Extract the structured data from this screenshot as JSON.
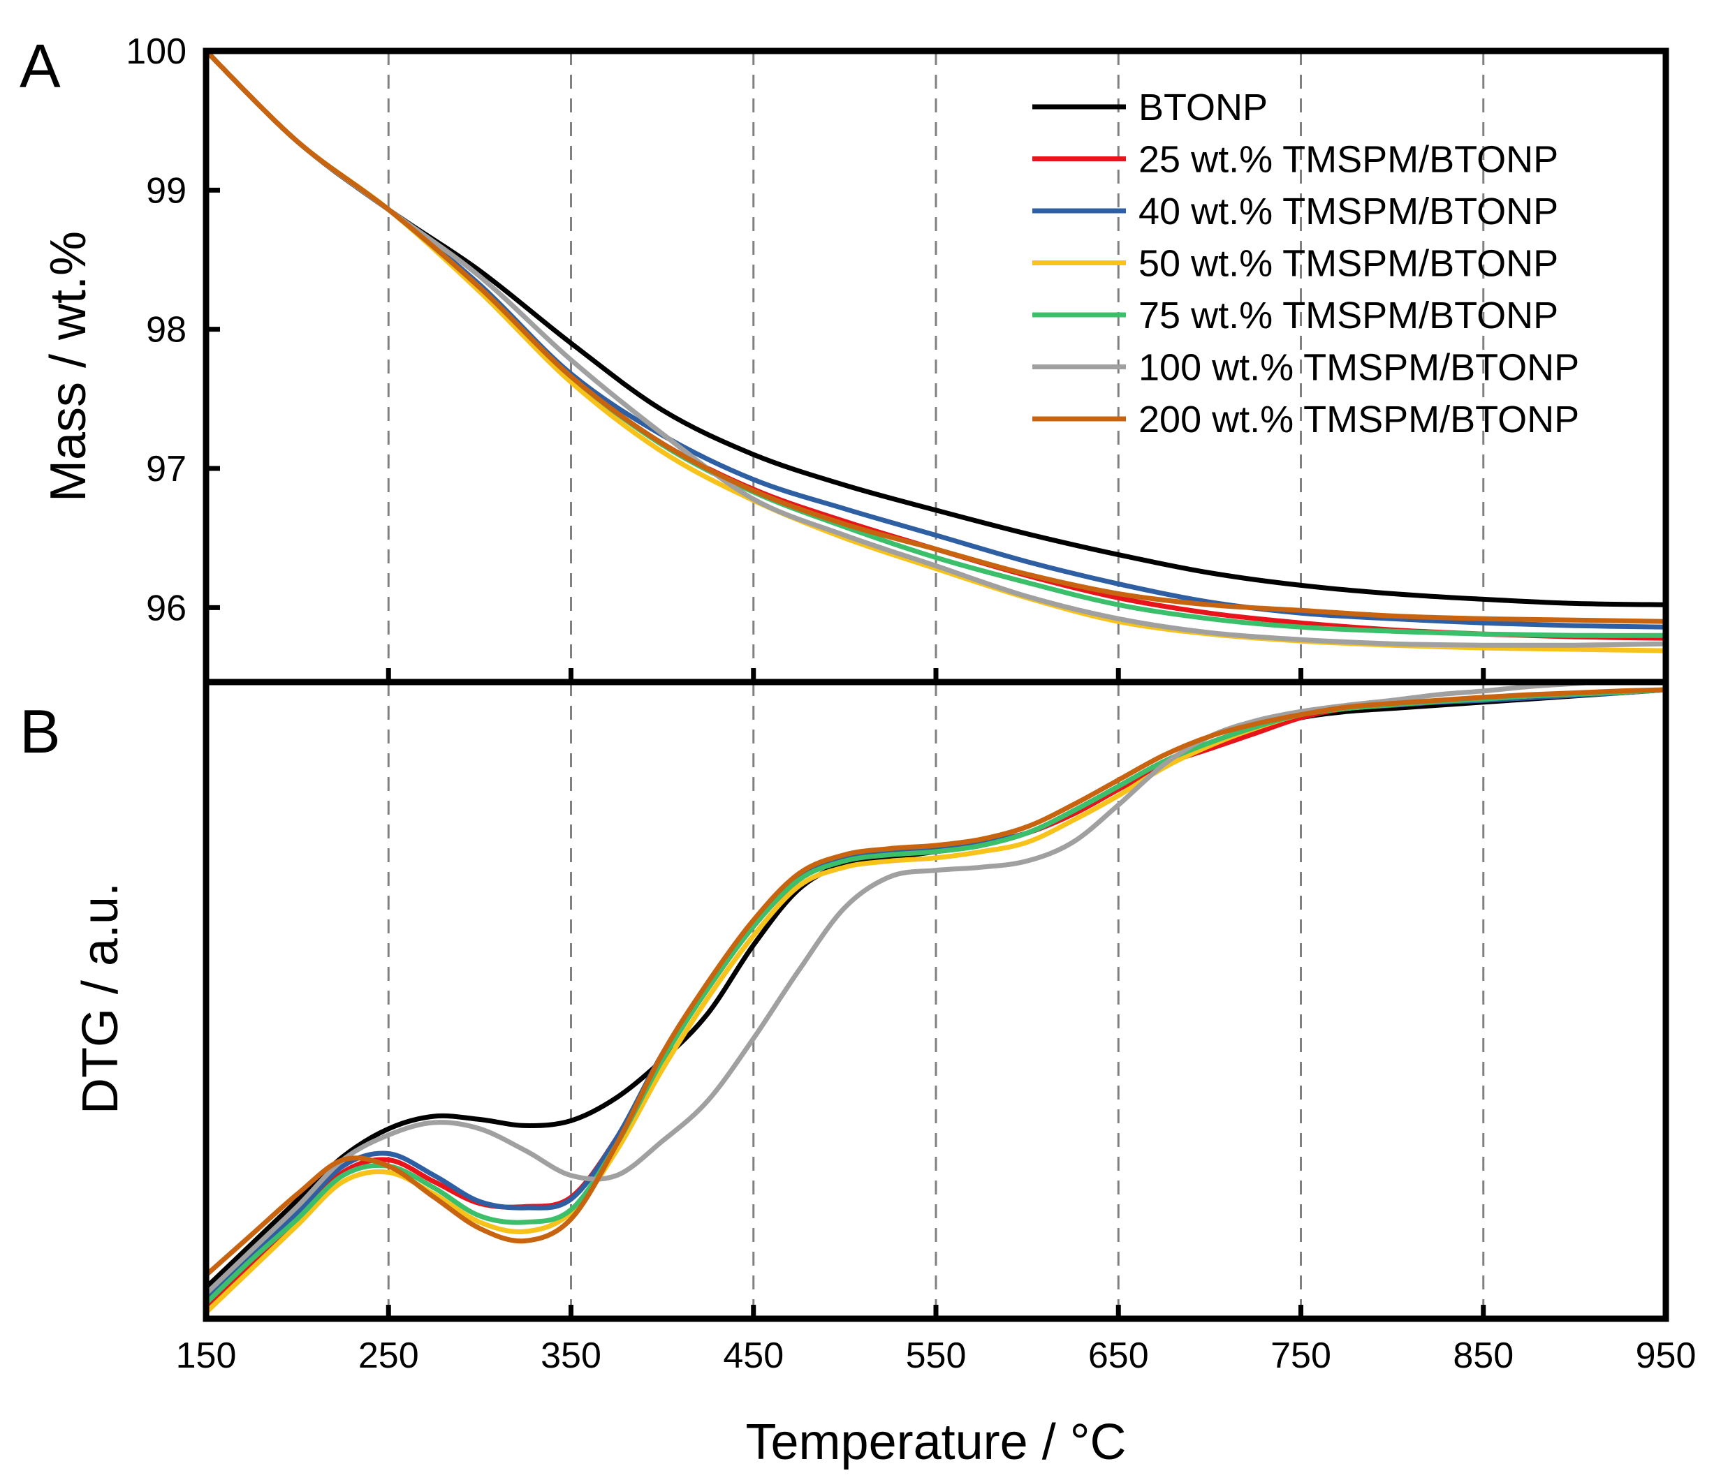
{
  "chart_data": [
    {
      "panel": "A",
      "type": "line",
      "title": "",
      "xlabel": "Temperature / °C",
      "ylabel": "Mass / wt.%",
      "xlim": [
        150,
        950
      ],
      "ylim": [
        95.5,
        100
      ],
      "x_ticks": [
        150,
        250,
        350,
        450,
        550,
        650,
        750,
        850,
        950
      ],
      "y_ticks": [
        96,
        97,
        98,
        99,
        100
      ],
      "grid": "vertical dashed",
      "legend_position": "top-right",
      "x": [
        150,
        200,
        250,
        300,
        350,
        400,
        450,
        500,
        550,
        600,
        650,
        700,
        750,
        800,
        850,
        900,
        950
      ],
      "series": [
        {
          "name": "BTONP",
          "color": "#000000",
          "values": [
            100,
            99.35,
            98.86,
            98.42,
            97.9,
            97.42,
            97.1,
            96.88,
            96.7,
            96.53,
            96.38,
            96.25,
            96.16,
            96.1,
            96.06,
            96.03,
            96.02
          ]
        },
        {
          "name": "25 wt.% TMSPM/BTONP",
          "color": "#e8141c",
          "values": [
            100,
            99.35,
            98.86,
            98.3,
            97.65,
            97.18,
            96.85,
            96.62,
            96.42,
            96.23,
            96.07,
            95.96,
            95.89,
            95.84,
            95.81,
            95.79,
            95.78
          ]
        },
        {
          "name": "40 wt.% TMSPM/BTONP",
          "color": "#2e5fa3",
          "values": [
            100,
            99.35,
            98.86,
            98.32,
            97.68,
            97.24,
            96.92,
            96.71,
            96.52,
            96.33,
            96.17,
            96.04,
            95.96,
            95.92,
            95.89,
            95.87,
            95.86
          ]
        },
        {
          "name": "50 wt.% TMSPM/BTONP",
          "color": "#f7c21a",
          "values": [
            100,
            99.35,
            98.86,
            98.27,
            97.62,
            97.12,
            96.77,
            96.5,
            96.28,
            96.07,
            95.9,
            95.81,
            95.76,
            95.73,
            95.71,
            95.7,
            95.69
          ]
        },
        {
          "name": "75 wt.% TMSPM/BTONP",
          "color": "#3cbf6a",
          "values": [
            100,
            99.35,
            98.86,
            98.3,
            97.66,
            97.17,
            96.83,
            96.58,
            96.36,
            96.18,
            96.02,
            95.92,
            95.86,
            95.83,
            95.81,
            95.8,
            95.8
          ]
        },
        {
          "name": "100 wt.% TMSPM/BTONP",
          "color": "#a0a0a0",
          "values": [
            100,
            99.35,
            98.86,
            98.38,
            97.78,
            97.25,
            96.78,
            96.52,
            96.3,
            96.08,
            95.92,
            95.82,
            95.77,
            95.74,
            95.73,
            95.73,
            95.74
          ]
        },
        {
          "name": "200 wt.% TMSPM/BTONP",
          "color": "#c8640f",
          "values": [
            100,
            99.35,
            98.86,
            98.3,
            97.66,
            97.18,
            96.84,
            96.6,
            96.42,
            96.24,
            96.1,
            96.02,
            95.98,
            95.94,
            95.92,
            95.91,
            95.9
          ]
        }
      ]
    },
    {
      "panel": "B",
      "type": "line",
      "title": "",
      "xlabel": "Temperature / °C",
      "ylabel": "DTG / a.u.",
      "xlim": [
        150,
        950
      ],
      "ylim": [
        0,
        100
      ],
      "x_ticks": [
        150,
        250,
        350,
        450,
        550,
        650,
        750,
        850,
        950
      ],
      "y_ticks": [],
      "grid": "vertical dashed",
      "x": [
        150,
        175,
        200,
        225,
        250,
        275,
        300,
        325,
        350,
        375,
        400,
        425,
        450,
        475,
        500,
        525,
        550,
        575,
        600,
        625,
        650,
        675,
        700,
        725,
        750,
        775,
        800,
        825,
        850,
        875,
        900,
        925,
        950
      ],
      "series": [
        {
          "name": "BTONP",
          "color": "#000000",
          "values": [
            4,
            11,
            18,
            25,
            29.5,
            31.5,
            31,
            30,
            30.8,
            34.5,
            40.5,
            48,
            59,
            68,
            72,
            73,
            74,
            75,
            77,
            80,
            84,
            88,
            91,
            93.5,
            95.5,
            96.5,
            97,
            97.5,
            98,
            98.5,
            99,
            99.5,
            100
          ]
        },
        {
          "name": "25 wt.% TMSPM/BTONP",
          "color": "#e8141c",
          "values": [
            1,
            8,
            15,
            22.5,
            24.5,
            21,
            17.5,
            17,
            18.5,
            28,
            41,
            52,
            62,
            69.5,
            73,
            74,
            74.5,
            75.5,
            77,
            80,
            84,
            88,
            90.5,
            93,
            95.5,
            97,
            97.5,
            98,
            98.5,
            99,
            99.3,
            99.6,
            100
          ]
        },
        {
          "name": "40 wt.% TMSPM/BTONP",
          "color": "#2e5fa3",
          "values": [
            2,
            9,
            16,
            23.5,
            25.5,
            22,
            17.8,
            16.8,
            18.2,
            28,
            41.5,
            52.5,
            62.5,
            70,
            73,
            74,
            74.5,
            75.5,
            77,
            80.5,
            84.5,
            88.5,
            91.5,
            94,
            96,
            97,
            97.5,
            98,
            98.3,
            98.7,
            99.1,
            99.5,
            100
          ]
        },
        {
          "name": "50 wt.% TMSPM/BTONP",
          "color": "#f7c21a",
          "values": [
            0,
            7,
            14,
            21,
            22.5,
            19,
            14.5,
            13,
            16,
            26,
            39,
            50.5,
            60.5,
            68.5,
            71.5,
            72.5,
            73,
            74,
            75.5,
            79,
            83,
            87.5,
            91,
            93.8,
            96,
            97,
            97.6,
            98.2,
            98.6,
            99,
            99.3,
            99.6,
            100
          ]
        },
        {
          "name": "75 wt.% TMSPM/BTONP",
          "color": "#3cbf6a",
          "values": [
            1.5,
            8.5,
            15,
            22,
            23.5,
            20,
            15.5,
            14.5,
            16.5,
            27,
            40.5,
            52,
            62,
            69.5,
            72.5,
            73.5,
            74,
            75,
            77,
            80.5,
            84.5,
            88.5,
            91.5,
            94,
            96,
            97,
            97.6,
            98.1,
            98.5,
            99,
            99.3,
            99.6,
            100
          ]
        },
        {
          "name": "100 wt.% TMSPM/BTONP",
          "color": "#a0a0a0",
          "values": [
            3,
            10,
            17,
            24.5,
            28.5,
            30.5,
            29.5,
            26,
            22,
            22,
            27.5,
            34,
            44,
            55,
            65,
            70,
            71,
            71.5,
            72.5,
            75.5,
            81.5,
            88,
            92.5,
            95,
            96.5,
            97.5,
            98.3,
            99.2,
            99.8,
            100.5,
            101,
            101.5,
            102
          ]
        },
        {
          "name": "200 wt.% TMSPM/BTONP",
          "color": "#c8640f",
          "values": [
            6,
            12.5,
            19,
            24.5,
            23.5,
            18.5,
            13.5,
            11.5,
            15,
            27,
            41.5,
            53,
            63,
            70.5,
            73.5,
            74.5,
            75,
            76,
            78,
            81.5,
            85.5,
            89.5,
            92.5,
            94.5,
            96,
            97.2,
            97.8,
            98.3,
            98.8,
            99.2,
            99.5,
            99.8,
            100
          ]
        }
      ]
    }
  ]
}
